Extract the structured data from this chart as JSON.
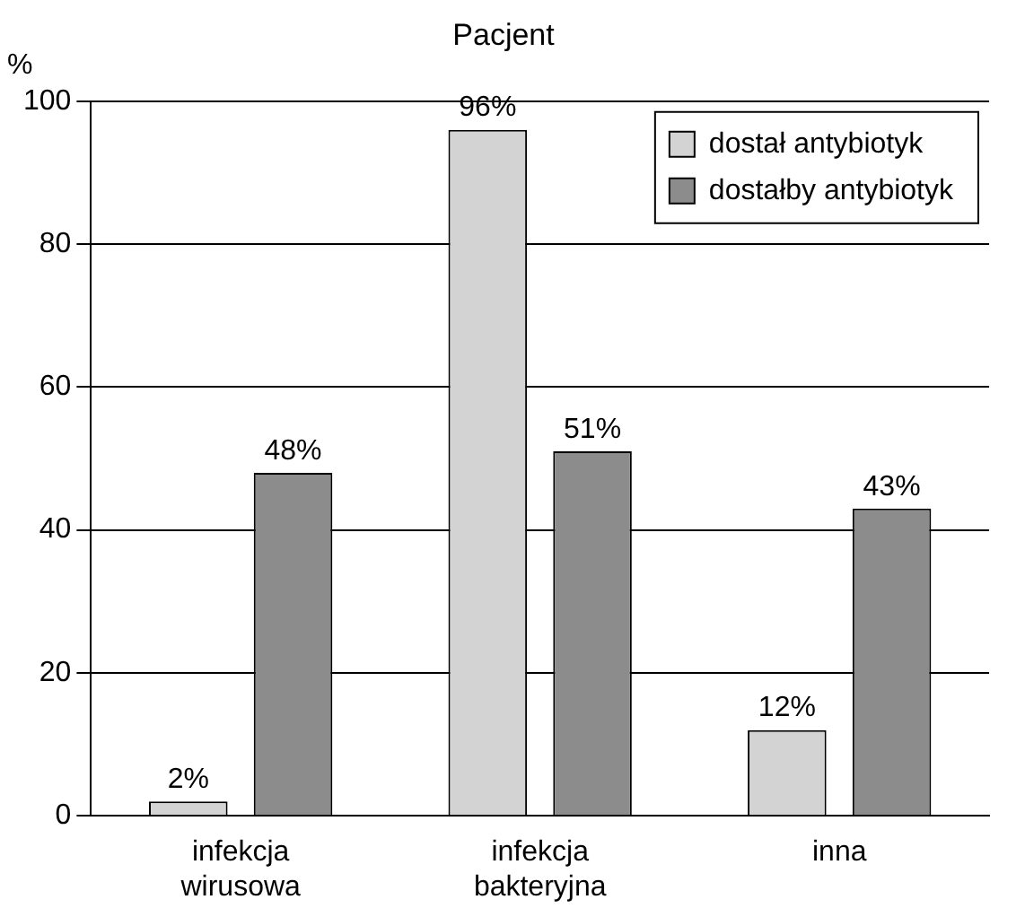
{
  "chart_data": {
    "type": "bar",
    "title": "Pacjent",
    "ylabel": "%",
    "categories": [
      "infekcja wirusowa",
      "infekcja bakteryjna",
      "inna"
    ],
    "series": [
      {
        "name": "dostał antybiotyk",
        "color": "#d3d3d3",
        "values": [
          2,
          96,
          12
        ],
        "value_labels": [
          "2%",
          "96%",
          "12%"
        ]
      },
      {
        "name": "dostałby antybiotyk",
        "color": "#8c8c8c",
        "values": [
          48,
          51,
          43
        ],
        "value_labels": [
          "48%",
          "51%",
          "43%"
        ]
      }
    ],
    "ylim": [
      0,
      100
    ],
    "yticks": [
      0,
      20,
      40,
      60,
      80,
      100
    ],
    "grid": "y",
    "legend": "top right"
  }
}
